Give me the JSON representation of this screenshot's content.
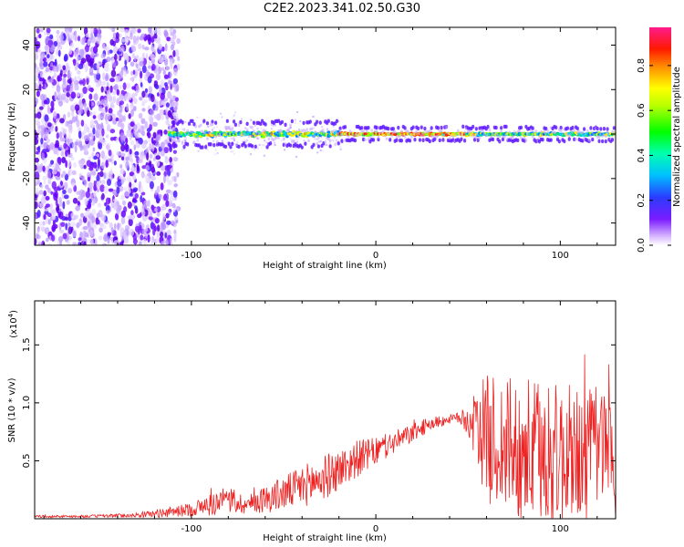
{
  "title": "C2E2.2023.341.02.50.G30",
  "chart_data": [
    {
      "type": "heatmap",
      "xlabel": "Height of straight line (km)",
      "ylabel": "Frequency (Hz)",
      "xlim": [
        -185,
        130
      ],
      "ylim": [
        -50,
        48
      ],
      "xticks": [
        -100,
        0,
        100
      ],
      "yticks": [
        -40,
        -20,
        0,
        20,
        40
      ],
      "xtick_labels": [
        "-100",
        "0",
        "100"
      ],
      "ytick_labels": [
        "-40",
        "-20",
        "0",
        "20",
        "40"
      ],
      "grid": false,
      "colorbar": {
        "label": "Normalized spectral amplitude",
        "range": [
          0.0,
          0.97
        ],
        "ticks": [
          0.0,
          0.2,
          0.4,
          0.6,
          0.8
        ],
        "tick_labels": [
          "0.0",
          "0.2",
          "0.4",
          "0.6",
          "0.8"
        ],
        "colormap": "rainbow (white-violet-blue-cyan-green-yellow-orange-red-magenta)"
      },
      "description_values": {
        "broadband_noise_region_x": [
          -185,
          -108
        ],
        "signal_band_center_hz": 0,
        "signal_band_halfwidth_hz": 5,
        "low_altitude_spread_x": [
          -108,
          -20
        ],
        "coherent_peak_region_x": [
          -20,
          50
        ]
      }
    },
    {
      "type": "line",
      "xlabel": "Height of straight line (km)",
      "ylabel": "SNR (10 * v/v)",
      "yscale_label": "(x10^4)",
      "xlim": [
        -185,
        130
      ],
      "ylim": [
        0,
        1.88
      ],
      "xticks": [
        -100,
        0,
        100
      ],
      "yticks": [
        0.5,
        1.0,
        1.5
      ],
      "xtick_labels": [
        "-100",
        "0",
        "100"
      ],
      "ytick_labels": [
        "0.5",
        "1.0",
        "1.5"
      ],
      "grid": false,
      "series": [
        {
          "color": "#ee2222",
          "x": [
            -185,
            -160,
            -130,
            -115,
            -100,
            -90,
            -80,
            -70,
            -60,
            -50,
            -40,
            -30,
            -20,
            -10,
            0,
            10,
            20,
            30,
            40,
            45,
            50,
            55,
            60,
            70,
            80,
            90,
            100,
            110,
            120,
            130
          ],
          "y_mean": [
            0.02,
            0.02,
            0.03,
            0.05,
            0.08,
            0.12,
            0.16,
            0.12,
            0.17,
            0.22,
            0.28,
            0.34,
            0.42,
            0.52,
            0.58,
            0.66,
            0.74,
            0.82,
            0.86,
            0.87,
            0.84,
            0.78,
            0.7,
            0.62,
            0.58,
            0.55,
            0.55,
            0.55,
            0.58,
            0.6
          ],
          "y_spread": [
            0.01,
            0.01,
            0.02,
            0.04,
            0.06,
            0.1,
            0.12,
            0.08,
            0.12,
            0.15,
            0.18,
            0.2,
            0.18,
            0.16,
            0.12,
            0.1,
            0.08,
            0.06,
            0.04,
            0.05,
            0.12,
            0.35,
            0.55,
            0.6,
            0.65,
            0.65,
            0.62,
            0.6,
            0.6,
            0.6
          ]
        }
      ]
    }
  ]
}
